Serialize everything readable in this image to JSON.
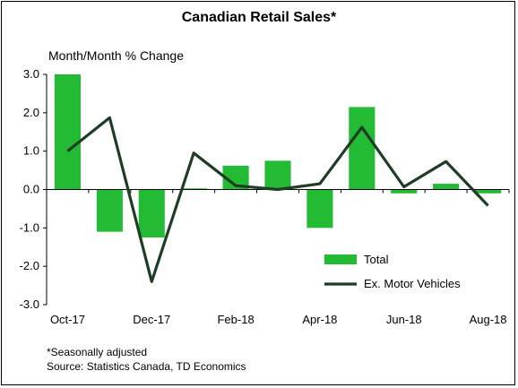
{
  "chart_data": {
    "type": "bar+line",
    "title": "Canadian Retail Sales*",
    "ylabel": "Month/Month % Change",
    "ylim": [
      -3.0,
      3.0
    ],
    "yticks": [
      "3.0",
      "2.0",
      "1.0",
      "0.0",
      "-1.0",
      "-2.0",
      "-3.0"
    ],
    "categories": [
      "Oct-17",
      "Nov-17",
      "Dec-17",
      "Jan-18",
      "Feb-18",
      "Mar-18",
      "Apr-18",
      "May-18",
      "Jun-18",
      "Jul-18",
      "Aug-18"
    ],
    "xtick_labels": [
      "Oct-17",
      "",
      "Dec-17",
      "",
      "Feb-18",
      "",
      "Apr-18",
      "",
      "Jun-18",
      "",
      "Aug-18"
    ],
    "series": [
      {
        "name": "Total",
        "type": "bar",
        "color": "#22bb33",
        "values": [
          3.0,
          -1.1,
          -1.25,
          0.03,
          0.62,
          0.75,
          -1.0,
          2.15,
          -0.1,
          0.15,
          -0.1
        ]
      },
      {
        "name": "Ex. Motor Vehicles",
        "type": "line",
        "color": "#1f3d25",
        "values": [
          1.0,
          1.87,
          -2.4,
          0.95,
          0.1,
          0.0,
          0.15,
          1.62,
          0.07,
          0.73,
          -0.42
        ]
      }
    ],
    "legend": "bottom-right"
  },
  "footnote": "*Seasonally adjusted",
  "source": "Source: Statistics Canada, TD Economics"
}
